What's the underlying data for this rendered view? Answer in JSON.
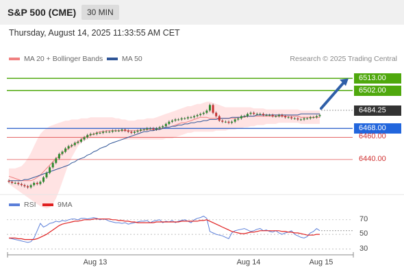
{
  "header": {
    "title": "S&P 500 (CME)",
    "timeframe": "30 MIN"
  },
  "timestamp": "Thursday, August 14, 2025 11:33:55 AM CET",
  "credit": "Research © 2025 Trading Central",
  "colors": {
    "resistance": "#4fa80d",
    "support_major": "#3366cc",
    "support_minor": "#e05050",
    "up": "#2e8b2e",
    "down": "#c83232",
    "ma20": "#f08080",
    "ma50": "#2f5597",
    "band": "#ffd9d9",
    "rsi": "#5b7fd9",
    "rsi_ma": "#e02020",
    "current": "#333333"
  },
  "chart_data": [
    {
      "type": "candlestick",
      "title": "S&P 500 (CME)",
      "timeframe": "30 MIN",
      "legend": [
        "MA 20 + Bollinger Bands",
        "MA 50"
      ],
      "ylim": [
        6411,
        6528
      ],
      "x_labels": [
        "Aug 13",
        "Aug 14",
        "Aug 15"
      ],
      "levels": {
        "resistance": [
          6513.0,
          6502.0
        ],
        "current": 6484.25,
        "support": [
          6468.0,
          6460.0,
          6440.0
        ]
      },
      "level_labels": {
        "r1": "6513.00",
        "r2": "6502.00",
        "current": "6484.25",
        "s1": "6468.00",
        "s2": "6460.00",
        "s3": "6440.00"
      },
      "arrow": {
        "from": 6486,
        "to": 6513,
        "direction": "up"
      },
      "closes": [
        6420,
        6419,
        6419,
        6418,
        6417,
        6416,
        6415,
        6417,
        6419,
        6418,
        6420,
        6424,
        6428,
        6433,
        6437,
        6441,
        6445,
        6447,
        6450,
        6452,
        6453,
        6455,
        6456,
        6458,
        6460,
        6462,
        6463,
        6463,
        6464,
        6464,
        6465,
        6465,
        6465,
        6466,
        6466,
        6466,
        6467,
        6466,
        6465,
        6464,
        6465,
        6466,
        6467,
        6467,
        6468,
        6468,
        6467,
        6468,
        6469,
        6470,
        6472,
        6474,
        6475,
        6476,
        6476,
        6477,
        6477,
        6478,
        6478,
        6479,
        6480,
        6481,
        6482,
        6484,
        6489,
        6482,
        6479,
        6475,
        6474,
        6474,
        6473,
        6474,
        6476,
        6477,
        6479,
        6479,
        6481,
        6482,
        6481,
        6481,
        6481,
        6480,
        6480,
        6480,
        6479,
        6479,
        6480,
        6479,
        6478,
        6478,
        6477,
        6477,
        6476,
        6476,
        6477,
        6477,
        6478,
        6478,
        6479,
        6480
      ],
      "ma20": [
        6425,
        6424,
        6423,
        6422,
        6421,
        6421,
        6421,
        6421,
        6422,
        6424,
        6426,
        6429,
        6432,
        6435,
        6438,
        6441,
        6443,
        6446,
        6448,
        6450,
        6452,
        6454,
        6456,
        6458,
        6460,
        6461,
        6462,
        6463,
        6464,
        6465,
        6465,
        6466,
        6466,
        6466,
        6466,
        6466,
        6466,
        6466,
        6466,
        6466,
        6466,
        6466,
        6466,
        6467,
        6467,
        6467,
        6467,
        6467,
        6468,
        6468,
        6469,
        6469,
        6470,
        6471,
        6472,
        6473,
        6473,
        6474,
        6475,
        6476,
        6477,
        6478,
        6478,
        6478,
        6477,
        6477,
        6477,
        6477,
        6477,
        6477,
        6477,
        6477,
        6477,
        6478,
        6478,
        6478,
        6479,
        6479,
        6479,
        6479,
        6479,
        6479,
        6479,
        6479,
        6479,
        6479,
        6479,
        6479,
        6479,
        6479,
        6479,
        6479,
        6479,
        6478,
        6478,
        6478,
        6478,
        6478,
        6478,
        6478
      ],
      "ma50": [
        6421,
        6421,
        6421,
        6421,
        6421,
        6422,
        6422,
        6423,
        6424,
        6425,
        6426,
        6427,
        6428,
        6429,
        6430,
        6431,
        6432,
        6433,
        6434,
        6435,
        6437,
        6438,
        6440,
        6441,
        6442,
        6444,
        6445,
        6447,
        6448,
        6450,
        6451,
        6452,
        6454,
        6455,
        6456,
        6457,
        6458,
        6459,
        6460,
        6461,
        6462,
        6463,
        6464,
        6465,
        6465,
        6466,
        6466,
        6467,
        6467,
        6468,
        6469,
        6469,
        6470,
        6470,
        6471,
        6471,
        6472,
        6472,
        6473,
        6473,
        6474,
        6474,
        6475,
        6475,
        6476,
        6476,
        6476,
        6477,
        6477,
        6477,
        6477,
        6478,
        6478,
        6478,
        6478,
        6479,
        6479,
        6479,
        6479,
        6480,
        6480,
        6480,
        6480,
        6480,
        6480,
        6480,
        6480,
        6480,
        6480,
        6480,
        6480,
        6480,
        6480,
        6481,
        6481,
        6481,
        6481,
        6481,
        6481,
        6481
      ],
      "band_upper": [
        6432,
        6432,
        6432,
        6433,
        6434,
        6437,
        6441,
        6446,
        6452,
        6458,
        6463,
        6466,
        6468,
        6470,
        6471,
        6472,
        6473,
        6474,
        6475,
        6475,
        6476,
        6476,
        6476,
        6477,
        6477,
        6477,
        6478,
        6478,
        6478,
        6478,
        6478,
        6478,
        6478,
        6478,
        6477,
        6477,
        6476,
        6476,
        6475,
        6475,
        6475,
        6476,
        6476,
        6476,
        6477,
        6477,
        6477,
        6478,
        6479,
        6480,
        6481,
        6482,
        6483,
        6484,
        6485,
        6486,
        6487,
        6488,
        6488,
        6489,
        6490,
        6490,
        6491,
        6492,
        6492,
        6491,
        6490,
        6489,
        6488,
        6487,
        6487,
        6487,
        6487,
        6487,
        6487,
        6487,
        6487,
        6487,
        6486,
        6486,
        6486,
        6486,
        6485,
        6485,
        6485,
        6485,
        6485,
        6485,
        6485,
        6485,
        6485,
        6485,
        6485,
        6484,
        6484,
        6484,
        6484,
        6484,
        6484,
        6484
      ],
      "band_lower": [
        6418,
        6416,
        6414,
        6412,
        6410,
        6408,
        6406,
        6404,
        6402,
        6400,
        6398,
        6397,
        6396,
        6397,
        6400,
        6405,
        6412,
        6420,
        6428,
        6436,
        6442,
        6447,
        6452,
        6455,
        6457,
        6458,
        6459,
        6459,
        6459,
        6459,
        6459,
        6459,
        6459,
        6459,
        6459,
        6459,
        6458,
        6458,
        6458,
        6458,
        6458,
        6458,
        6458,
        6458,
        6458,
        6458,
        6458,
        6458,
        6458,
        6458,
        6459,
        6459,
        6459,
        6460,
        6461,
        6462,
        6463,
        6464,
        6464,
        6465,
        6465,
        6465,
        6465,
        6465,
        6465,
        6465,
        6466,
        6466,
        6466,
        6466,
        6467,
        6467,
        6467,
        6468,
        6468,
        6469,
        6469,
        6470,
        6470,
        6471,
        6471,
        6471,
        6472,
        6472,
        6472,
        6472,
        6473,
        6473,
        6473,
        6473,
        6473,
        6473,
        6473,
        6472,
        6472,
        6472,
        6472,
        6472,
        6472,
        6472
      ]
    },
    {
      "type": "line",
      "title": "RSI",
      "legend": [
        "RSI",
        "9MA"
      ],
      "ylim": [
        22,
        82
      ],
      "y_ticks": [
        70,
        50,
        30
      ],
      "rsi": [
        45,
        44,
        43,
        42,
        41,
        40,
        39,
        40,
        45,
        55,
        65,
        60,
        62,
        65,
        66,
        68,
        67,
        69,
        68,
        70,
        71,
        71,
        70,
        72,
        72,
        71,
        72,
        73,
        72,
        70,
        71,
        70,
        68,
        67,
        66,
        66,
        65,
        66,
        64,
        65,
        66,
        67,
        68,
        68,
        69,
        66,
        68,
        69,
        70,
        66,
        68,
        67,
        69,
        66,
        68,
        69,
        70,
        68,
        66,
        70,
        72,
        73,
        75,
        72,
        54,
        52,
        50,
        49,
        48,
        46,
        44,
        52,
        55,
        56,
        57,
        58,
        56,
        54,
        55,
        57,
        58,
        55,
        56,
        54,
        53,
        55,
        52,
        50,
        52,
        53,
        55,
        50,
        48,
        46,
        45,
        47,
        52,
        54,
        58,
        55
      ],
      "ma9": [
        45,
        45,
        45,
        44,
        44,
        43,
        43,
        43,
        43,
        44,
        46,
        48,
        50,
        53,
        56,
        59,
        62,
        64,
        65,
        66,
        67,
        68,
        68,
        69,
        70,
        70,
        70,
        71,
        71,
        71,
        71,
        71,
        71,
        70,
        70,
        69,
        69,
        68,
        68,
        67,
        67,
        66,
        66,
        66,
        66,
        66,
        66,
        67,
        67,
        67,
        67,
        67,
        67,
        67,
        67,
        68,
        68,
        68,
        68,
        68,
        68,
        69,
        69,
        70,
        68,
        66,
        64,
        62,
        60,
        58,
        56,
        54,
        53,
        52,
        51,
        51,
        52,
        53,
        53,
        54,
        55,
        55,
        55,
        55,
        55,
        55,
        55,
        54,
        54,
        53,
        53,
        52,
        52,
        51,
        50,
        49,
        49,
        49,
        50,
        50
      ]
    }
  ],
  "rsi_axis": [
    "70",
    "50",
    "30"
  ]
}
